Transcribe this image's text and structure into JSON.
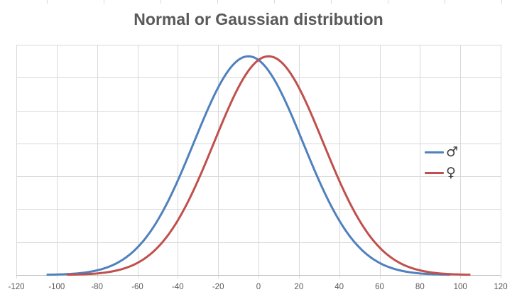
{
  "chart_data": {
    "type": "line",
    "title": "Normal or Gaussian distribution",
    "xlabel": "",
    "ylabel": "",
    "xlim": [
      -120,
      120
    ],
    "x_ticks": [
      -120,
      -100,
      -80,
      -60,
      -40,
      -20,
      0,
      20,
      40,
      60,
      80,
      100,
      120
    ],
    "y_gridlines": 7,
    "y_tick_labels_visible": false,
    "grid": true,
    "legend_position": "right",
    "series": [
      {
        "name": "♂",
        "color": "#4f81bd",
        "distribution": "normal",
        "mean": -5,
        "sigma": 27,
        "x_range": [
          -105,
          95
        ]
      },
      {
        "name": "♀",
        "color": "#c0504d",
        "distribution": "normal",
        "mean": 5,
        "sigma": 27,
        "x_range": [
          -95,
          105
        ]
      }
    ]
  },
  "legend": {
    "items": [
      {
        "label": "♂",
        "color": "#4f81bd"
      },
      {
        "label": "♀",
        "color": "#c0504d"
      }
    ]
  }
}
